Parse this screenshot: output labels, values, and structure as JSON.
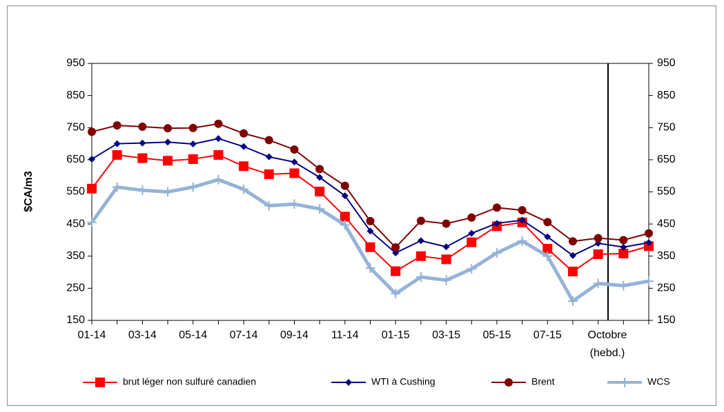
{
  "chart_data": {
    "type": "line",
    "y_label": "$CA/m3",
    "categories": [
      "01-14",
      null,
      "03-14",
      null,
      "05-14",
      null,
      "07-14",
      null,
      "09-14",
      null,
      "11-14",
      null,
      "01-15",
      null,
      "03-15",
      null,
      "05-15",
      null,
      "07-15",
      null,
      null,
      null,
      null
    ],
    "weekly_label": [
      "Octobre",
      "(hebd.)"
    ],
    "series": [
      {
        "name": "brut léger non sulfuré canadien",
        "color": "#ff0000",
        "marker": "square",
        "values": [
          560,
          665,
          655,
          647,
          652,
          665,
          630,
          605,
          608,
          551,
          473,
          378,
          303,
          350,
          340,
          393,
          443,
          455,
          373,
          302,
          356,
          358,
          381
        ]
      },
      {
        "name": "WTI à Cushing",
        "color": "#000080",
        "marker": "diamond",
        "values": [
          652,
          700,
          702,
          705,
          699,
          716,
          691,
          659,
          643,
          595,
          538,
          428,
          360,
          398,
          379,
          421,
          452,
          462,
          410,
          352,
          390,
          378,
          392
        ]
      },
      {
        "name": "Brent",
        "color": "#800000",
        "marker": "circle",
        "values": [
          737,
          757,
          753,
          748,
          749,
          762,
          732,
          711,
          682,
          621,
          569,
          459,
          377,
          460,
          451,
          470,
          501,
          493,
          456,
          396,
          406,
          400,
          421
        ]
      },
      {
        "name": "WCS",
        "color": "#95b3d7",
        "marker": "plus",
        "values": [
          455,
          565,
          555,
          550,
          565,
          588,
          558,
          507,
          512,
          497,
          447,
          313,
          233,
          285,
          275,
          310,
          360,
          397,
          350,
          210,
          265,
          258,
          272
        ]
      }
    ],
    "ylim": [
      150,
      950
    ],
    "yticks": [
      150,
      250,
      350,
      450,
      550,
      650,
      750,
      850,
      950
    ],
    "y2lim": [
      150,
      950
    ],
    "y2ticks": [
      150,
      250,
      350,
      450,
      550,
      650,
      750,
      850,
      950
    ],
    "grid": false,
    "legend": "bottom"
  }
}
